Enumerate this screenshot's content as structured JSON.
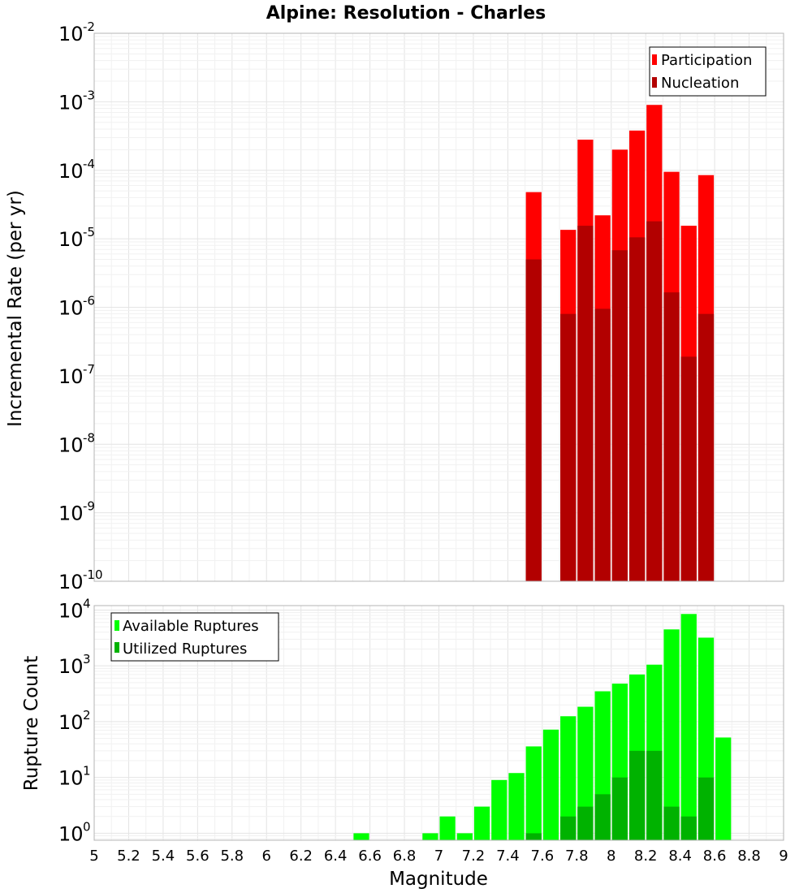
{
  "title": "Alpine: Resolution - Charles",
  "chart_data": [
    {
      "type": "bar",
      "panel": "top",
      "ylabel": "Incremental Rate (per yr)",
      "yscale": "log",
      "ylim": [
        1e-10,
        0.01
      ],
      "xlim": [
        5,
        9
      ],
      "legend_position": "top-right",
      "y_ticks": [
        {
          "base": "10",
          "exp": "-10",
          "value": 1e-10
        },
        {
          "base": "10",
          "exp": "-9",
          "value": 1e-09
        },
        {
          "base": "10",
          "exp": "-8",
          "value": 1e-08
        },
        {
          "base": "10",
          "exp": "-7",
          "value": 1e-07
        },
        {
          "base": "10",
          "exp": "-6",
          "value": 1e-06
        },
        {
          "base": "10",
          "exp": "-5",
          "value": 1e-05
        },
        {
          "base": "10",
          "exp": "-4",
          "value": 0.0001
        },
        {
          "base": "10",
          "exp": "-3",
          "value": 0.001
        },
        {
          "base": "10",
          "exp": "-2",
          "value": 0.01
        }
      ],
      "series": [
        {
          "name": "Participation",
          "color": "#ff0000",
          "points": [
            {
              "x": 7.55,
              "y": 4.8e-05
            },
            {
              "x": 7.75,
              "y": 1.35e-05
            },
            {
              "x": 7.85,
              "y": 0.00028
            },
            {
              "x": 7.95,
              "y": 2.2e-05
            },
            {
              "x": 8.05,
              "y": 0.0002
            },
            {
              "x": 8.15,
              "y": 0.00038
            },
            {
              "x": 8.25,
              "y": 0.0009
            },
            {
              "x": 8.35,
              "y": 9.5e-05
            },
            {
              "x": 8.45,
              "y": 1.55e-05
            },
            {
              "x": 8.55,
              "y": 8.5e-05
            }
          ]
        },
        {
          "name": "Nucleation",
          "color": "#b20000",
          "points": [
            {
              "x": 7.55,
              "y": 5e-06
            },
            {
              "x": 7.75,
              "y": 8e-07
            },
            {
              "x": 7.85,
              "y": 1.55e-05
            },
            {
              "x": 7.95,
              "y": 9.5e-07
            },
            {
              "x": 8.05,
              "y": 6.8e-06
            },
            {
              "x": 8.15,
              "y": 1.05e-05
            },
            {
              "x": 8.25,
              "y": 1.8e-05
            },
            {
              "x": 8.35,
              "y": 1.65e-06
            },
            {
              "x": 8.45,
              "y": 1.9e-07
            },
            {
              "x": 8.55,
              "y": 8e-07
            }
          ]
        }
      ]
    },
    {
      "type": "bar",
      "panel": "bottom",
      "xlabel": "Magnitude",
      "ylabel": "Rupture Count",
      "yscale": "log",
      "ylim": [
        0.75,
        12000
      ],
      "xlim": [
        5,
        9
      ],
      "legend_position": "top-left",
      "x_ticks": [
        "5",
        "5.2",
        "5.4",
        "5.6",
        "5.8",
        "6",
        "6.2",
        "6.4",
        "6.6",
        "6.8",
        "7",
        "7.2",
        "7.4",
        "7.6",
        "7.8",
        "8",
        "8.2",
        "8.4",
        "8.6",
        "8.8",
        "9"
      ],
      "y_ticks": [
        {
          "base": "10",
          "exp": "0",
          "value": 1
        },
        {
          "base": "10",
          "exp": "1",
          "value": 10
        },
        {
          "base": "10",
          "exp": "2",
          "value": 100
        },
        {
          "base": "10",
          "exp": "3",
          "value": 1000
        },
        {
          "base": "10",
          "exp": "4",
          "value": 10000
        }
      ],
      "series": [
        {
          "name": "Available Ruptures",
          "color": "#00ff00",
          "points": [
            {
              "x": 6.55,
              "y": 1
            },
            {
              "x": 6.95,
              "y": 1
            },
            {
              "x": 7.05,
              "y": 2
            },
            {
              "x": 7.15,
              "y": 1
            },
            {
              "x": 7.25,
              "y": 3
            },
            {
              "x": 7.35,
              "y": 9
            },
            {
              "x": 7.45,
              "y": 12
            },
            {
              "x": 7.55,
              "y": 36
            },
            {
              "x": 7.65,
              "y": 72
            },
            {
              "x": 7.75,
              "y": 125
            },
            {
              "x": 7.85,
              "y": 185
            },
            {
              "x": 7.95,
              "y": 350
            },
            {
              "x": 8.05,
              "y": 480
            },
            {
              "x": 8.15,
              "y": 700
            },
            {
              "x": 8.25,
              "y": 1050
            },
            {
              "x": 8.35,
              "y": 4500
            },
            {
              "x": 8.45,
              "y": 8500
            },
            {
              "x": 8.55,
              "y": 3200
            },
            {
              "x": 8.65,
              "y": 52
            }
          ]
        },
        {
          "name": "Utilized Ruptures",
          "color": "#00b200",
          "points": [
            {
              "x": 7.55,
              "y": 1
            },
            {
              "x": 7.75,
              "y": 2
            },
            {
              "x": 7.85,
              "y": 3
            },
            {
              "x": 7.95,
              "y": 5
            },
            {
              "x": 8.05,
              "y": 10
            },
            {
              "x": 8.15,
              "y": 30
            },
            {
              "x": 8.25,
              "y": 30
            },
            {
              "x": 8.35,
              "y": 3
            },
            {
              "x": 8.45,
              "y": 2
            },
            {
              "x": 8.55,
              "y": 10
            }
          ]
        }
      ]
    }
  ]
}
